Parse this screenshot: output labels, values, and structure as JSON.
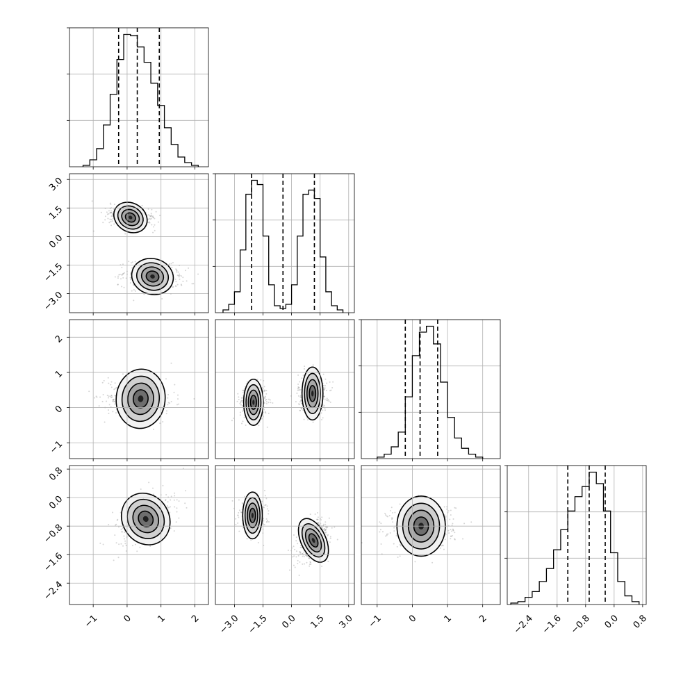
{
  "chart_data": {
    "type": "corner",
    "n_params": 4,
    "grid": true,
    "params": [
      {
        "range": [
          -1.7,
          2.4
        ],
        "ticks": [
          -1,
          0,
          1,
          2
        ],
        "tick_labels": [
          "−1",
          "0",
          "1",
          "2"
        ],
        "quantiles": [
          -0.25,
          0.3,
          0.95
        ],
        "hist": {
          "edges": [
            -1.3,
            -1.1,
            -0.9,
            -0.7,
            -0.5,
            -0.3,
            -0.1,
            0.1,
            0.3,
            0.5,
            0.7,
            0.9,
            1.1,
            1.3,
            1.5,
            1.7,
            1.9,
            2.1
          ],
          "counts": [
            1,
            5,
            13,
            30,
            52,
            77,
            95,
            94,
            86,
            75,
            60,
            44,
            28,
            16,
            7,
            3,
            1
          ]
        }
      },
      {
        "range": [
          -4.0,
          3.3
        ],
        "ticks": [
          -3.0,
          -1.5,
          0.0,
          1.5,
          3.0
        ],
        "tick_labels": [
          "−3.0",
          "−1.5",
          "0.0",
          "1.5",
          "3.0"
        ],
        "quantiles": [
          -2.1,
          -0.45,
          1.2
        ],
        "hist": {
          "edges": [
            -3.6,
            -3.3,
            -3.0,
            -2.7,
            -2.4,
            -2.1,
            -1.8,
            -1.5,
            -1.2,
            -0.9,
            -0.6,
            -0.3,
            0.0,
            0.3,
            0.6,
            0.9,
            1.2,
            1.5,
            1.8,
            2.1,
            2.4,
            2.7
          ],
          "counts": [
            2,
            6,
            15,
            45,
            85,
            95,
            92,
            55,
            20,
            5,
            3,
            6,
            20,
            55,
            85,
            88,
            82,
            40,
            15,
            5,
            2
          ]
        }
      },
      {
        "range": [
          -1.45,
          2.5
        ],
        "ticks": [
          -1,
          0,
          1,
          2
        ],
        "tick_labels": [
          "−1",
          "0",
          "1",
          "2"
        ],
        "quantiles": [
          -0.2,
          0.22,
          0.72
        ],
        "hist": {
          "edges": [
            -1.0,
            -0.8,
            -0.6,
            -0.4,
            -0.2,
            0.0,
            0.2,
            0.4,
            0.6,
            0.8,
            1.0,
            1.2,
            1.4,
            1.6,
            1.8,
            2.0
          ],
          "counts": [
            1,
            3,
            8,
            18,
            42,
            70,
            86,
            90,
            78,
            52,
            28,
            14,
            7,
            3,
            1
          ]
        }
      },
      {
        "range": [
          -3.0,
          0.9
        ],
        "ticks": [
          -2.4,
          -1.6,
          -0.8,
          0.0,
          0.8
        ],
        "tick_labels": [
          "−2.4",
          "−1.6",
          "−0.8",
          "0.0",
          "0.8"
        ],
        "quantiles": [
          -1.3,
          -0.7,
          -0.25
        ],
        "hist": {
          "edges": [
            -2.9,
            -2.7,
            -2.5,
            -2.3,
            -2.1,
            -1.9,
            -1.7,
            -1.5,
            -1.3,
            -1.1,
            -0.9,
            -0.7,
            -0.5,
            -0.3,
            -0.1,
            0.1,
            0.3,
            0.5,
            0.7
          ],
          "counts": [
            1,
            2,
            5,
            9,
            16,
            25,
            38,
            52,
            65,
            75,
            82,
            92,
            84,
            65,
            36,
            16,
            6,
            2
          ]
        }
      }
    ],
    "pairs": [
      {
        "row": 1,
        "col": 0,
        "contours": [
          {
            "cx": 0.1,
            "cy": 1.0,
            "a": 0.75,
            "b": 0.16,
            "angle": -32
          },
          {
            "cx": 0.75,
            "cy": -2.1,
            "a": 0.9,
            "b": 0.2,
            "angle": -15
          }
        ]
      },
      {
        "row": 2,
        "col": 0,
        "contours": [
          {
            "cx": 0.4,
            "cy": 0.25,
            "a": 1.05,
            "b": 0.18,
            "angle": -5
          }
        ]
      },
      {
        "row": 2,
        "col": 1,
        "contours": [
          {
            "cx": -2.0,
            "cy": 0.15,
            "a": 0.75,
            "b": 0.14,
            "angle": 0
          },
          {
            "cx": 1.1,
            "cy": 0.4,
            "a": 0.8,
            "b": 0.16,
            "angle": 0
          }
        ]
      },
      {
        "row": 3,
        "col": 0,
        "contours": [
          {
            "cx": 0.55,
            "cy": -0.6,
            "a": 1.0,
            "b": 0.16,
            "angle": 32
          }
        ]
      },
      {
        "row": 3,
        "col": 1,
        "contours": [
          {
            "cx": -2.05,
            "cy": -0.5,
            "a": 0.75,
            "b": 0.14,
            "angle": 0
          },
          {
            "cx": 1.15,
            "cy": -1.2,
            "a": 0.95,
            "b": 0.14,
            "angle": 25
          }
        ]
      },
      {
        "row": 3,
        "col": 2,
        "contours": [
          {
            "cx": 0.25,
            "cy": -0.8,
            "a": 1.0,
            "b": 0.18,
            "angle": 0
          }
        ]
      }
    ]
  }
}
